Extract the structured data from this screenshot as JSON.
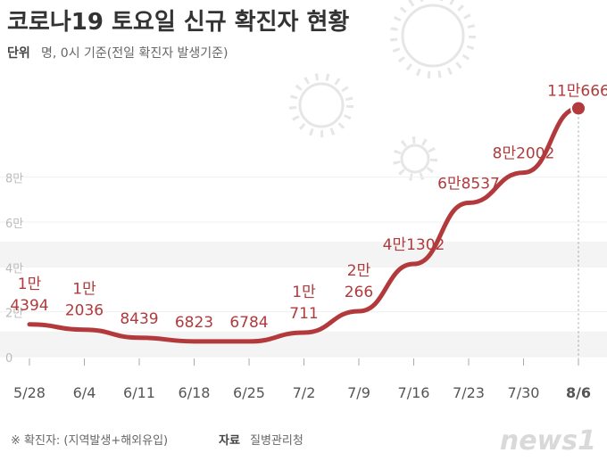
{
  "title": "코로나19 토요일 신규 확진자 현황",
  "subtitle": {
    "label": "단위",
    "text": "명, 0시 기준(전일 확진자 발생기준)"
  },
  "footer": {
    "note": "※ 확진자: (지역발생+해외유입)",
    "source_label": "자료",
    "source": "질병관리청"
  },
  "logo": "news1",
  "chart_data": {
    "type": "line",
    "categories": [
      "5/28",
      "6/4",
      "6/11",
      "6/18",
      "6/25",
      "7/2",
      "7/9",
      "7/16",
      "7/23",
      "7/30",
      "8/6"
    ],
    "series": [
      {
        "name": "신규 확진자",
        "color": "#b23a3c",
        "values": [
          14394,
          12036,
          8439,
          6823,
          6784,
          10711,
          20266,
          41302,
          68537,
          82002,
          110666
        ],
        "value_labels": [
          "1만\n4394",
          "1만\n2036",
          "8439",
          "6823",
          "6784",
          "1만\n711",
          "2만\n266",
          "4만1302",
          "6만8537",
          "8만2002",
          "11만666"
        ]
      }
    ],
    "ylim": [
      0,
      120000
    ],
    "yticks": [
      0,
      {
        "value": 20000,
        "label": "2만"
      },
      {
        "value": 40000,
        "label": "4만"
      },
      {
        "value": 60000,
        "label": "6만"
      },
      {
        "value": 80000,
        "label": "8만"
      }
    ],
    "grid": true
  }
}
